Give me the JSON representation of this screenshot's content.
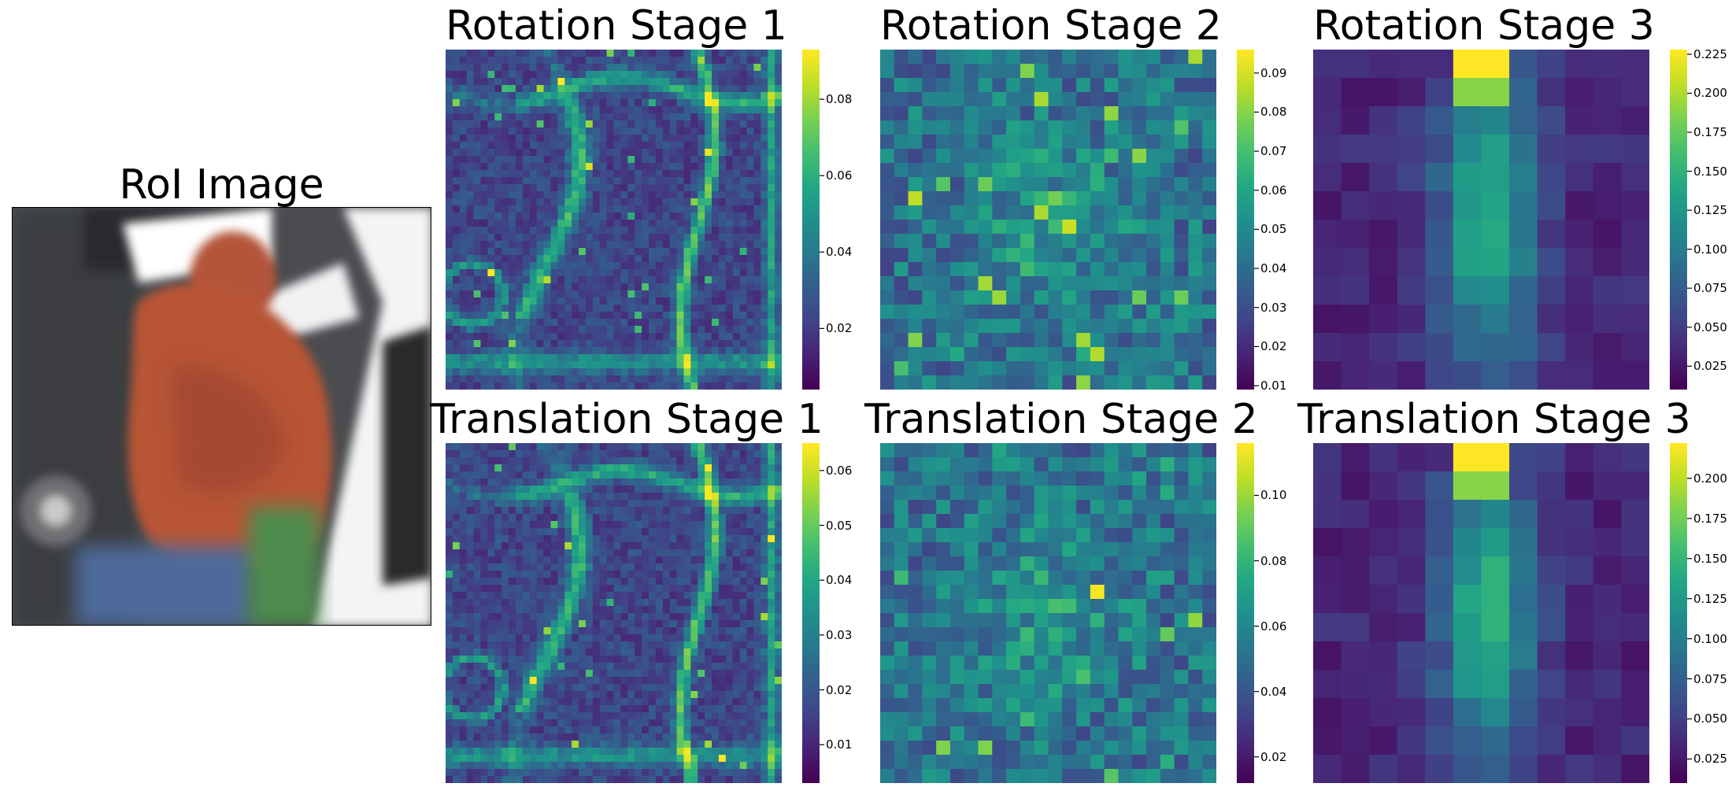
{
  "figure": {
    "roi_title": "RoI Image",
    "roi_image_description": "roi-image"
  },
  "chart_data": [
    {
      "type": "heatmap",
      "title": "Rotation Stage 1",
      "colormap": "viridis",
      "grid": [
        48,
        48
      ],
      "vmin": 0.004,
      "vmax": 0.093,
      "colorbar_ticks": [
        "0.02",
        "0.04",
        "0.06",
        "0.08"
      ],
      "colorbar_tick_values": [
        0.02,
        0.04,
        0.06,
        0.08
      ],
      "xlabel": "",
      "ylabel": ""
    },
    {
      "type": "heatmap",
      "title": "Rotation Stage 2",
      "colormap": "viridis",
      "grid": [
        24,
        24
      ],
      "vmin": 0.009,
      "vmax": 0.096,
      "colorbar_ticks": [
        "0.01",
        "0.02",
        "0.03",
        "0.04",
        "0.05",
        "0.06",
        "0.07",
        "0.08",
        "0.09"
      ],
      "colorbar_tick_values": [
        0.01,
        0.02,
        0.03,
        0.04,
        0.05,
        0.06,
        0.07,
        0.08,
        0.09
      ],
      "xlabel": "",
      "ylabel": ""
    },
    {
      "type": "heatmap",
      "title": "Rotation Stage 3",
      "colormap": "viridis",
      "grid": [
        12,
        12
      ],
      "vmin": 0.01,
      "vmax": 0.228,
      "colorbar_ticks": [
        "0.025",
        "0.050",
        "0.075",
        "0.100",
        "0.125",
        "0.150",
        "0.175",
        "0.200",
        "0.225"
      ],
      "colorbar_tick_values": [
        0.025,
        0.05,
        0.075,
        0.1,
        0.125,
        0.15,
        0.175,
        0.2,
        0.225
      ],
      "xlabel": "",
      "ylabel": ""
    },
    {
      "type": "heatmap",
      "title": "Translation Stage 1",
      "colormap": "viridis",
      "grid": [
        48,
        48
      ],
      "vmin": 0.003,
      "vmax": 0.065,
      "colorbar_ticks": [
        "0.01",
        "0.02",
        "0.03",
        "0.04",
        "0.05",
        "0.06"
      ],
      "colorbar_tick_values": [
        0.01,
        0.02,
        0.03,
        0.04,
        0.05,
        0.06
      ],
      "xlabel": "",
      "ylabel": ""
    },
    {
      "type": "heatmap",
      "title": "Translation Stage 2",
      "colormap": "viridis",
      "grid": [
        24,
        24
      ],
      "vmin": 0.012,
      "vmax": 0.116,
      "colorbar_ticks": [
        "0.02",
        "0.04",
        "0.06",
        "0.08",
        "0.10"
      ],
      "colorbar_tick_values": [
        0.02,
        0.04,
        0.06,
        0.08,
        0.1
      ],
      "xlabel": "",
      "ylabel": ""
    },
    {
      "type": "heatmap",
      "title": "Translation Stage 3",
      "colormap": "viridis",
      "grid": [
        12,
        12
      ],
      "vmin": 0.01,
      "vmax": 0.222,
      "colorbar_ticks": [
        "0.025",
        "0.050",
        "0.075",
        "0.100",
        "0.125",
        "0.150",
        "0.175",
        "0.200"
      ],
      "colorbar_tick_values": [
        0.025,
        0.05,
        0.075,
        0.1,
        0.125,
        0.15,
        0.175,
        0.2
      ],
      "xlabel": "",
      "ylabel": ""
    }
  ]
}
